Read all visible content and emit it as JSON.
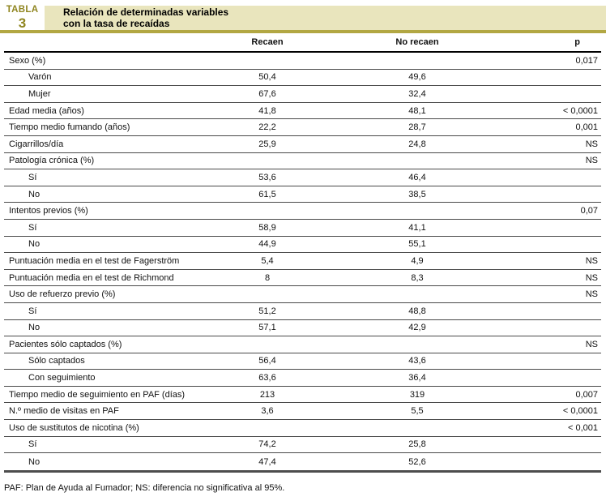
{
  "badge": {
    "word": "TABLA",
    "number": "3"
  },
  "title": {
    "line1": "Relación de determinadas variables",
    "line2": "con la tasa de recaídas"
  },
  "columns": {
    "recaen": "Recaen",
    "no_recaen": "No recaen",
    "p": "p"
  },
  "rows": [
    {
      "label": "Sexo (%)",
      "indent": false,
      "recaen": "",
      "no_recaen": "",
      "p": "0,017"
    },
    {
      "label": "Varón",
      "indent": true,
      "recaen": "50,4",
      "no_recaen": "49,6",
      "p": ""
    },
    {
      "label": "Mujer",
      "indent": true,
      "recaen": "67,6",
      "no_recaen": "32,4",
      "p": ""
    },
    {
      "label": "Edad media (años)",
      "indent": false,
      "recaen": "41,8",
      "no_recaen": "48,1",
      "p": "< 0,0001"
    },
    {
      "label": "Tiempo medio fumando (años)",
      "indent": false,
      "recaen": "22,2",
      "no_recaen": "28,7",
      "p": "0,001"
    },
    {
      "label": "Cigarrillos/día",
      "indent": false,
      "recaen": "25,9",
      "no_recaen": "24,8",
      "p": "NS"
    },
    {
      "label": "Patología crónica (%)",
      "indent": false,
      "recaen": "",
      "no_recaen": "",
      "p": "NS"
    },
    {
      "label": "Sí",
      "indent": true,
      "recaen": "53,6",
      "no_recaen": "46,4",
      "p": ""
    },
    {
      "label": "No",
      "indent": true,
      "recaen": "61,5",
      "no_recaen": "38,5",
      "p": ""
    },
    {
      "label": "Intentos previos (%)",
      "indent": false,
      "recaen": "",
      "no_recaen": "",
      "p": "0,07"
    },
    {
      "label": "Sí",
      "indent": true,
      "recaen": "58,9",
      "no_recaen": "41,1",
      "p": ""
    },
    {
      "label": "No",
      "indent": true,
      "recaen": "44,9",
      "no_recaen": "55,1",
      "p": ""
    },
    {
      "label": "Puntuación media en el test de Fagerström",
      "indent": false,
      "recaen": "5,4",
      "no_recaen": "4,9",
      "p": "NS"
    },
    {
      "label": "Puntuación media en el test de Richmond",
      "indent": false,
      "recaen": "8",
      "no_recaen": "8,3",
      "p": "NS"
    },
    {
      "label": "Uso de refuerzo previo (%)",
      "indent": false,
      "recaen": "",
      "no_recaen": "",
      "p": "NS"
    },
    {
      "label": "Sí",
      "indent": true,
      "recaen": "51,2",
      "no_recaen": "48,8",
      "p": ""
    },
    {
      "label": "No",
      "indent": true,
      "recaen": "57,1",
      "no_recaen": "42,9",
      "p": ""
    },
    {
      "label": "Pacientes sólo captados (%)",
      "indent": false,
      "recaen": "",
      "no_recaen": "",
      "p": "NS"
    },
    {
      "label": "Sólo captados",
      "indent": true,
      "recaen": "56,4",
      "no_recaen": "43,6",
      "p": ""
    },
    {
      "label": "Con seguimiento",
      "indent": true,
      "recaen": "63,6",
      "no_recaen": "36,4",
      "p": ""
    },
    {
      "label": "Tiempo medio de seguimiento en PAF (días)",
      "indent": false,
      "recaen": "213",
      "no_recaen": "319",
      "p": "0,007"
    },
    {
      "label": "N.º medio de visitas en PAF",
      "indent": false,
      "recaen": "3,6",
      "no_recaen": "5,5",
      "p": "< 0,0001"
    },
    {
      "label": "Uso de sustitutos de nicotina (%)",
      "indent": false,
      "recaen": "",
      "no_recaen": "",
      "p": "< 0,001"
    },
    {
      "label": "Sí",
      "indent": true,
      "recaen": "74,2",
      "no_recaen": "25,8",
      "p": ""
    },
    {
      "label": "No",
      "indent": true,
      "recaen": "47,4",
      "no_recaen": "52,6",
      "p": ""
    }
  ],
  "footnote": "PAF: Plan de Ayuda al Fumador; NS: diferencia no significativa al 95%.",
  "colors": {
    "band_bg": "#e9e5bd",
    "accent": "#b2a743",
    "badge_text": "#8f851f"
  }
}
